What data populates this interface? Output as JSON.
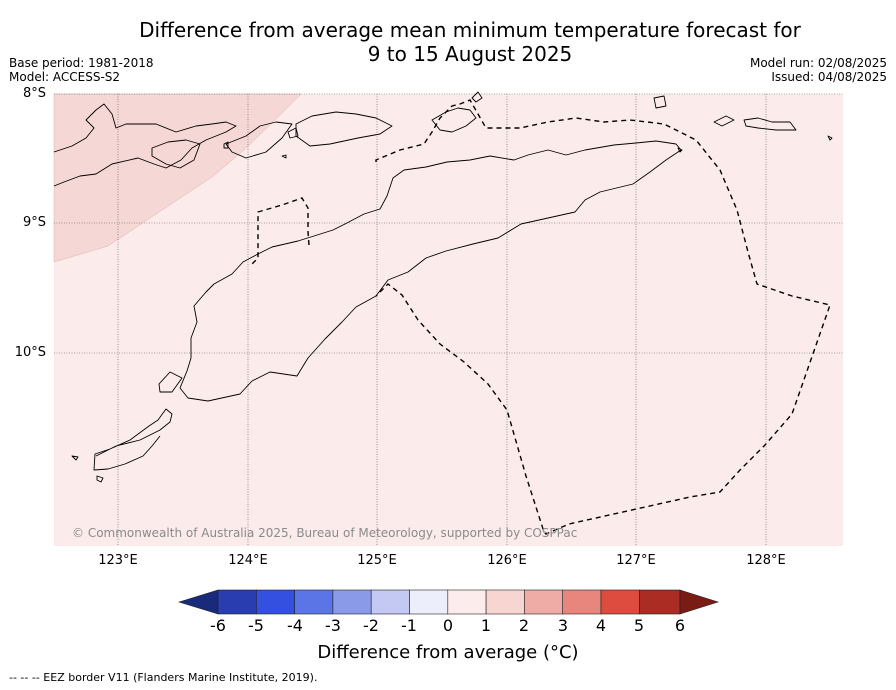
{
  "title": {
    "line1": "Difference from average mean minimum temperature forecast for",
    "line2": "9 to 15 August 2025"
  },
  "meta": {
    "base_period": "Base period: 1981-2018",
    "model": "Model: ACCESS-S2",
    "model_run": "Model run: 02/08/2025",
    "issued": "Issued: 04/08/2025"
  },
  "map": {
    "lat_labels": [
      "8°S",
      "9°S",
      "10°S"
    ],
    "lon_labels": [
      "123°E",
      "124°E",
      "125°E",
      "126°E",
      "127°E",
      "128°E"
    ],
    "copyright": "© Commonwealth of Australia 2025, Bureau of Meteorology, supported by COSPPac",
    "background_category": "0 to 1",
    "northwest_category": "1 to 2"
  },
  "colorbar": {
    "ticks": [
      "-6",
      "-5",
      "-4",
      "-3",
      "-2",
      "-1",
      "0",
      "1",
      "2",
      "3",
      "4",
      "5",
      "6"
    ],
    "colors": [
      "#1a2a7a",
      "#2a3db0",
      "#3350e0",
      "#5c75e6",
      "#8a9ae8",
      "#c3c9f3",
      "#eceefc",
      "#fceceb",
      "#f7d6d2",
      "#efaca6",
      "#e8867d",
      "#de4b3f",
      "#aa2c22",
      "#7a1b14"
    ],
    "label": "Difference from average (°C)"
  },
  "footnote": "--  --  -- EEZ border V11 (Flanders Marine Institute, 2019).",
  "colors": {
    "map_fill": "#fbeceb",
    "map_fill_nw": "#f5d8d5",
    "coast": "#000000",
    "grid": "#555555"
  }
}
